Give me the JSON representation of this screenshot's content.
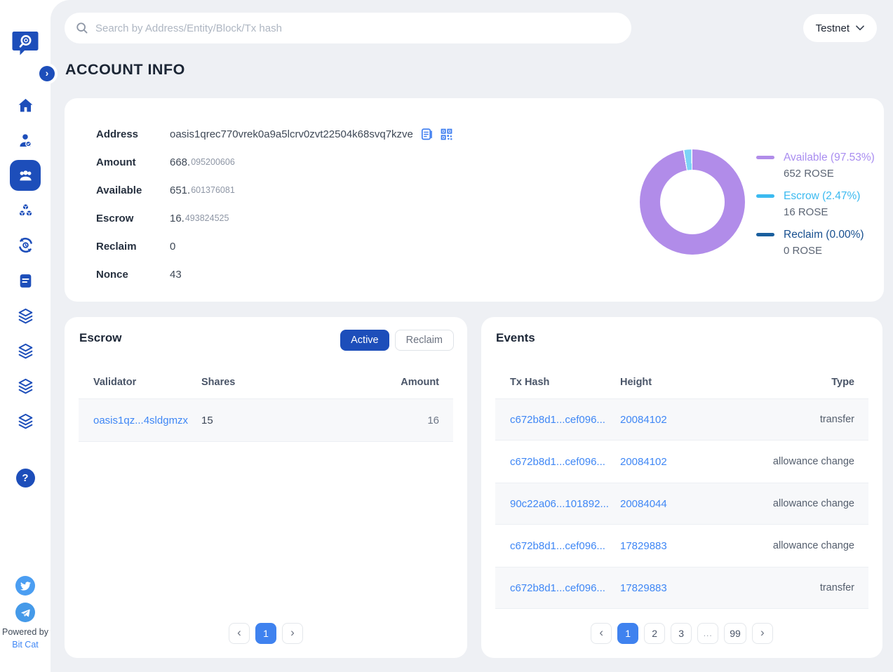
{
  "topbar": {
    "search_placeholder": "Search by Address/Entity/Block/Tx hash",
    "network": "Testnet"
  },
  "page_title": "ACCOUNT INFO",
  "account": {
    "fields": [
      {
        "label": "Address",
        "value": "oasis1qrec770vrek0a9a5lcrv0zvt22504k68svq7kzve"
      },
      {
        "label": "Amount",
        "int": "668.",
        "dec": "095200606"
      },
      {
        "label": "Available",
        "int": "651.",
        "dec": "601376081"
      },
      {
        "label": "Escrow",
        "int": "16.",
        "dec": "493824525"
      },
      {
        "label": "Reclaim",
        "value": "0"
      },
      {
        "label": "Nonce",
        "value": "43"
      }
    ]
  },
  "chart_data": {
    "type": "pie",
    "unit": "ROSE",
    "legend_position": "right",
    "hole_ratio": 0.61,
    "slices": [
      {
        "name": "Available",
        "pct": 97.53,
        "display": "Available (97.53%)",
        "amount": "652 ROSE",
        "color": "#b18ce9",
        "label_color": "#a98df0"
      },
      {
        "name": "Escrow",
        "pct": 2.47,
        "display": "Escrow (2.47%)",
        "amount": "16 ROSE",
        "color": "#7dd3f7",
        "label_color": "#3bbaf0"
      },
      {
        "name": "Reclaim",
        "pct": 0.0,
        "display": "Reclaim (0.00%)",
        "amount": "0 ROSE",
        "color": "#1a5f9e",
        "label_color": "#174f8f"
      }
    ]
  },
  "escrow": {
    "title": "Escrow",
    "tabs": [
      {
        "label": "Active",
        "active": true
      },
      {
        "label": "Reclaim",
        "active": false
      }
    ],
    "headers": [
      "Validator",
      "Shares",
      "Amount"
    ],
    "rows": [
      {
        "validator": "oasis1qz...4sldgmzx",
        "shares": "15",
        "amount": "16"
      }
    ],
    "pagination": {
      "pages": [
        "1"
      ],
      "active": "1"
    }
  },
  "events": {
    "title": "Events",
    "headers": [
      "Tx Hash",
      "Height",
      "Type"
    ],
    "rows": [
      {
        "tx_hash": "c672b8d1...cef096...",
        "height": "20084102",
        "type": "transfer"
      },
      {
        "tx_hash": "c672b8d1...cef096...",
        "height": "20084102",
        "type": "allowance change"
      },
      {
        "tx_hash": "90c22a06...101892...",
        "height": "20084044",
        "type": "allowance change"
      },
      {
        "tx_hash": "c672b8d1...cef096...",
        "height": "17829883",
        "type": "allowance change"
      },
      {
        "tx_hash": "c672b8d1...cef096...",
        "height": "17829883",
        "type": "transfer"
      }
    ],
    "pagination": {
      "pages": [
        "1",
        "2",
        "3",
        "...",
        "99"
      ],
      "active": "1"
    }
  },
  "sidebar": {
    "icons": [
      "home",
      "validators",
      "accounts",
      "blocks",
      "transactions",
      "proposals",
      "paratime-1",
      "paratime-2",
      "paratime-3",
      "paratime-4",
      "help"
    ],
    "active_icon": "accounts",
    "powered_by": "Powered by",
    "brand_link": "Bit Cat"
  },
  "colors": {
    "brand": "#1d4eba",
    "link": "#3f87f5",
    "pagination_active": "#3f82ef",
    "page_bg": "#eef0f4",
    "stripe_bg": "#f7f8fa"
  }
}
